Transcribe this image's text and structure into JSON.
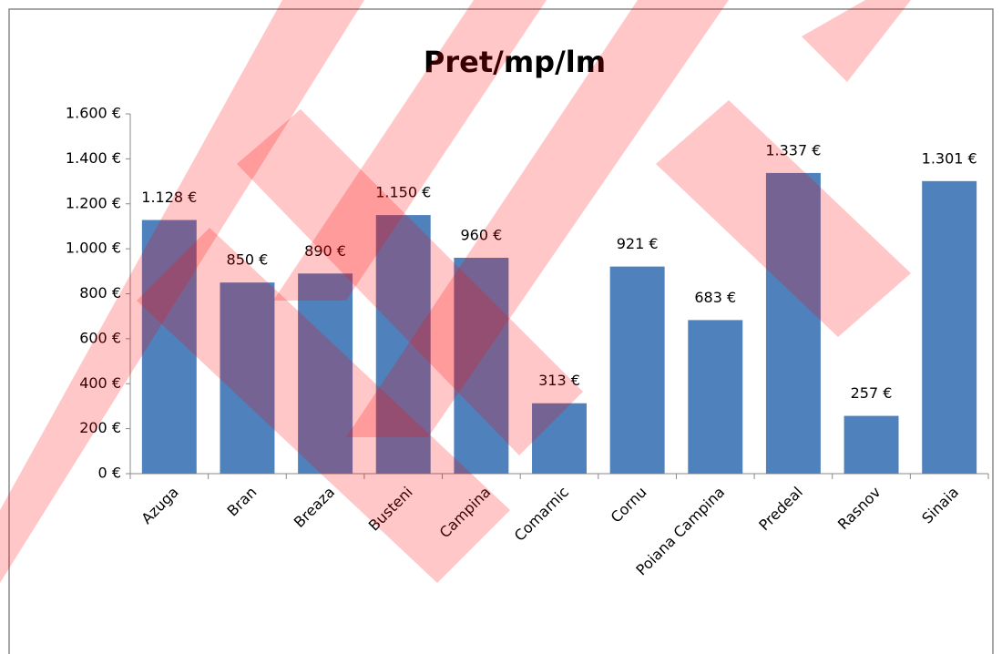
{
  "chart_data": {
    "type": "bar",
    "title": "Pret/mp/lm",
    "categories": [
      "Azuga",
      "Bran",
      "Breaza",
      "Busteni",
      "Campina",
      "Comarnic",
      "Cornu",
      "Poiana Campina",
      "Predeal",
      "Rasnov",
      "Sinaia"
    ],
    "values": [
      1128,
      850,
      890,
      1150,
      960,
      313,
      921,
      683,
      1337,
      257,
      1301
    ],
    "value_labels": [
      "1.128 €",
      "850 €",
      "890 €",
      "1.150 €",
      "960 €",
      "313 €",
      "921 €",
      "683 €",
      "1.337 €",
      "257 €",
      "1.301 €"
    ],
    "color": "#4f81bd",
    "ylim": [
      0,
      1600
    ],
    "yticks": [
      {
        "value": 0,
        "label": "0 €"
      },
      {
        "value": 200,
        "label": "200 €"
      },
      {
        "value": 400,
        "label": "400 €"
      },
      {
        "value": 600,
        "label": "600 €"
      },
      {
        "value": 800,
        "label": "800 €"
      },
      {
        "value": 1000,
        "label": "1.000 €"
      },
      {
        "value": 1200,
        "label": "1.200 €"
      },
      {
        "value": 1400,
        "label": "1.400 €"
      },
      {
        "value": 1600,
        "label": "1.600 €"
      }
    ],
    "grid": false
  }
}
